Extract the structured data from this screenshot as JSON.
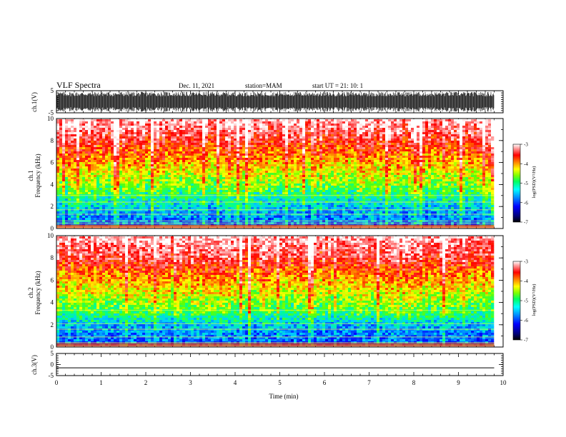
{
  "header": {
    "title": "VLF Spectra",
    "date": "Dec. 11, 2021",
    "station": "station=MAM",
    "start_ut": "start  UT =   21: 10: 1"
  },
  "chart_data": [
    {
      "type": "line",
      "name": "ch1-waveform",
      "ylabel": "ch.1(V)",
      "ylim": [
        -5,
        5
      ],
      "yticks": [
        "5",
        "-5"
      ],
      "xlim": [
        0,
        10
      ],
      "trace": "dense noise waveform",
      "amplitude_v": 4.5,
      "color": "#000000"
    },
    {
      "type": "heatmap",
      "name": "ch1-spectrogram",
      "ylabel_channel": "ch.1",
      "ylabel": "Frequency  (kHz)",
      "ylim": [
        0,
        10
      ],
      "yticks": [
        "0",
        "2",
        "4",
        "6",
        "8",
        "10"
      ],
      "xlim": [
        0,
        9.8
      ],
      "value_levels_log_psd": [
        [
          0,
          -6.2
        ],
        [
          1,
          -6.0
        ],
        [
          2,
          -5.7
        ],
        [
          3,
          -5.3
        ],
        [
          4,
          -4.9
        ],
        [
          5,
          -4.6
        ],
        [
          6,
          -4.3
        ],
        [
          7,
          -4.0
        ],
        [
          8,
          -3.7
        ],
        [
          9,
          -3.4
        ],
        [
          10,
          -3.2
        ]
      ],
      "interference_lines_khz": [
        0.5,
        0.7,
        1.3,
        1.7,
        2.4,
        3.0
      ],
      "colorbar": {
        "label": "log(PSD)(V²/Hz)",
        "range": [
          -7,
          -3
        ],
        "ticks": [
          "-3",
          "-4",
          "-5",
          "-6",
          "-7"
        ]
      }
    },
    {
      "type": "heatmap",
      "name": "ch2-spectrogram",
      "ylabel_channel": "ch.2",
      "ylabel": "Frequency  (kHz)",
      "ylim": [
        0,
        10
      ],
      "yticks": [
        "0",
        "2",
        "4",
        "6",
        "8",
        "10"
      ],
      "xlim": [
        0,
        9.8
      ],
      "value_levels_log_psd": [
        [
          0,
          -6.3
        ],
        [
          1,
          -6.1
        ],
        [
          2,
          -5.8
        ],
        [
          3,
          -5.2
        ],
        [
          4,
          -4.9
        ],
        [
          5,
          -4.6
        ],
        [
          6,
          -4.3
        ],
        [
          7,
          -4.0
        ],
        [
          8,
          -3.6
        ],
        [
          9,
          -3.4
        ],
        [
          10,
          -3.2
        ]
      ],
      "interference_lines_khz": [
        0.4,
        0.9,
        1.6,
        2.1,
        3.3
      ],
      "colorbar": {
        "label": "log(PSD)(V²/Hz)",
        "range": [
          -7,
          -3
        ],
        "ticks": [
          "-3",
          "-4",
          "-5",
          "-6",
          "-7"
        ]
      }
    },
    {
      "type": "line",
      "name": "ch3-waveform",
      "ylabel": "ch.3(V)",
      "ylim": [
        -5,
        5
      ],
      "yticks": [
        "5",
        "0",
        "-5"
      ],
      "xlim": [
        0,
        10
      ],
      "x": [
        0,
        9.8
      ],
      "y": [
        -1.5,
        -1.5
      ],
      "color": "#000000"
    }
  ],
  "xaxis": {
    "label": "Time  (min)",
    "range": [
      0,
      10
    ],
    "ticks": [
      "0",
      "1",
      "2",
      "3",
      "4",
      "5",
      "6",
      "7",
      "8",
      "9",
      "10"
    ]
  },
  "colors": {
    "colormap": [
      "#000090",
      "#0000ff",
      "#0090ff",
      "#00ffff",
      "#00ff80",
      "#80ff00",
      "#ffff00",
      "#ff9000",
      "#ff0000",
      "#ffa0a0",
      "#ffffff"
    ],
    "axis": "#000000",
    "background": "#ffffff"
  }
}
